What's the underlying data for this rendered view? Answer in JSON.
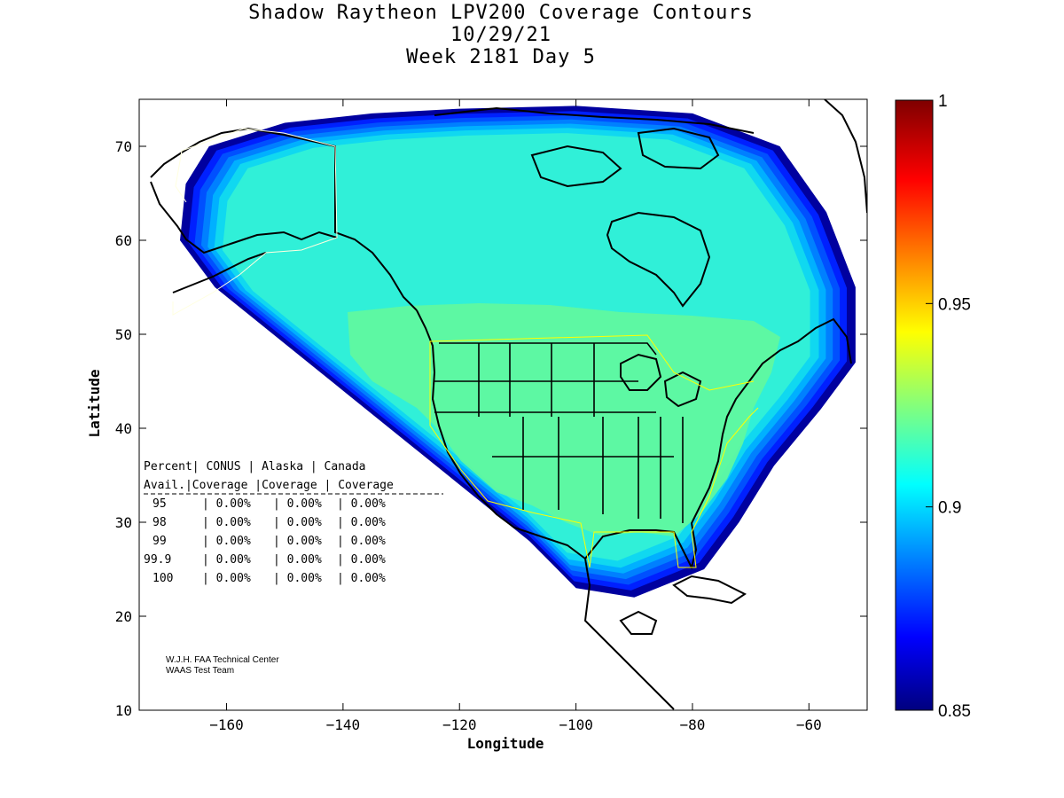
{
  "title": {
    "line1": "Shadow Raytheon LPV200 Coverage Contours",
    "line2": "10/29/21",
    "line3": "Week 2181 Day 5"
  },
  "chart_data": {
    "type": "heatmap",
    "title": "Shadow Raytheon LPV200 Coverage Contours",
    "xlabel": "Longitude",
    "ylabel": "Latitude",
    "xlim": [
      -175,
      -50
    ],
    "ylim": [
      10,
      75
    ],
    "xticks": [
      -160,
      -140,
      -120,
      -100,
      -80,
      -60
    ],
    "yticks": [
      10,
      20,
      30,
      40,
      50,
      60,
      70
    ],
    "colorbar": {
      "range": [
        0.85,
        1
      ],
      "ticks": [
        0.85,
        0.9,
        0.95,
        1
      ],
      "tick_labels": [
        "0.85",
        "0.9",
        "0.95",
        "1"
      ],
      "colormap": "jet"
    },
    "contour_levels": [
      {
        "value": 0.85,
        "color": "#00009f"
      },
      {
        "value": 0.86,
        "color": "#0020ff"
      },
      {
        "value": 0.87,
        "color": "#0050ff"
      },
      {
        "value": 0.88,
        "color": "#0080ff"
      },
      {
        "value": 0.89,
        "color": "#00b0ff"
      },
      {
        "value": 0.895,
        "color": "#10d8f0"
      },
      {
        "value": 0.9,
        "color": "#30f0d8"
      },
      {
        "value": 0.91,
        "color": "#60f8a0"
      }
    ]
  },
  "stats_table": {
    "header1": [
      "Percent",
      "CONUS",
      "Alaska",
      "Canada"
    ],
    "header2": [
      "Avail.",
      "Coverage",
      "Coverage",
      "Coverage"
    ],
    "rows": [
      {
        "avail": "95",
        "conus": "0.00%",
        "alaska": "0.00%",
        "canada": "0.00%"
      },
      {
        "avail": "98",
        "conus": "0.00%",
        "alaska": "0.00%",
        "canada": "0.00%"
      },
      {
        "avail": "99",
        "conus": "0.00%",
        "alaska": "0.00%",
        "canada": "0.00%"
      },
      {
        "avail": "99.9",
        "conus": "0.00%",
        "alaska": "0.00%",
        "canada": "0.00%"
      },
      {
        "avail": "100",
        "conus": "0.00%",
        "alaska": "0.00%",
        "canada": "0.00%"
      }
    ]
  },
  "credits": {
    "line1": "W.J.H. FAA Technical Center",
    "line2": "WAAS Test Team"
  }
}
